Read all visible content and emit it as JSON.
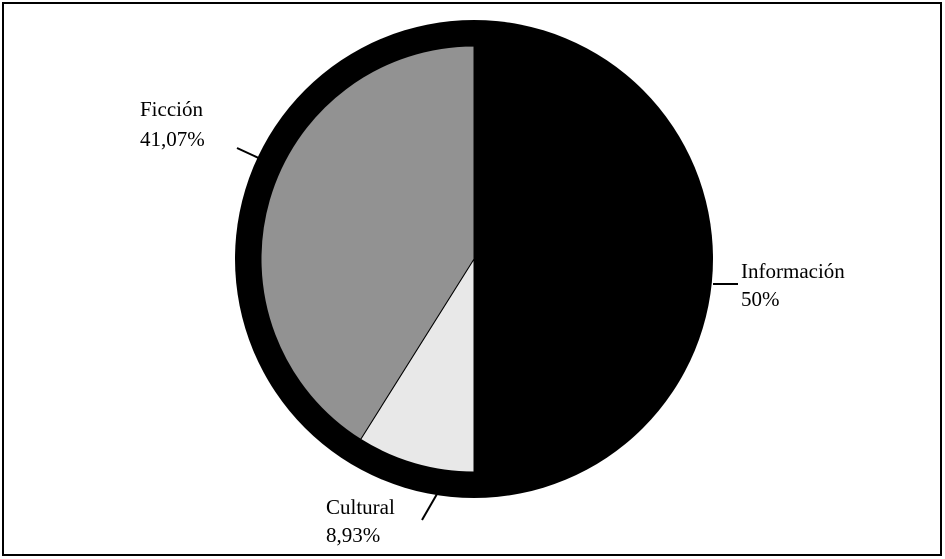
{
  "chart_data": {
    "type": "pie",
    "title": "",
    "slices": [
      {
        "label": "Información",
        "value": 50,
        "value_label": "50%",
        "color": "#000000"
      },
      {
        "label": "Cultural",
        "value": 8.93,
        "value_label": "8,93%",
        "color": "#e8e8e8"
      },
      {
        "label": "Ficción",
        "value": 41.07,
        "value_label": "41,07%",
        "color": "#929292"
      }
    ],
    "start_angle": "top, clockwise",
    "legend": "none",
    "ring_color": "#000000",
    "frame": true
  }
}
